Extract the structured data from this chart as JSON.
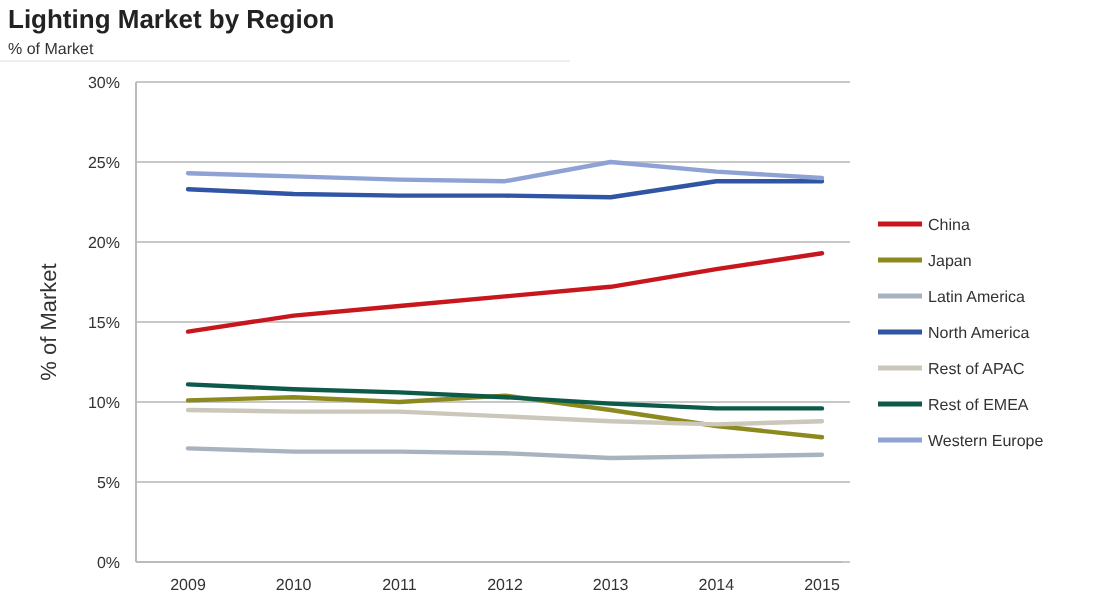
{
  "chart_data": {
    "type": "line",
    "title": "Lighting Market by Region",
    "subtitle": "% of Market",
    "ylabel": "% of Market",
    "categories": [
      "2009",
      "2010",
      "2011",
      "2012",
      "2013",
      "2014",
      "2015"
    ],
    "series": [
      {
        "name": "China",
        "color": "#c8161d",
        "values": [
          14.4,
          15.4,
          16.0,
          16.6,
          17.2,
          18.3,
          19.3
        ]
      },
      {
        "name": "Japan",
        "color": "#8c8a1e",
        "values": [
          10.1,
          10.3,
          10.0,
          10.4,
          9.5,
          8.5,
          7.8
        ]
      },
      {
        "name": "Latin America",
        "color": "#a9b3c0",
        "values": [
          7.1,
          6.9,
          6.9,
          6.8,
          6.5,
          6.6,
          6.7
        ]
      },
      {
        "name": "North America",
        "color": "#2f55a4",
        "values": [
          23.3,
          23.0,
          22.9,
          22.9,
          22.8,
          23.8,
          23.8
        ]
      },
      {
        "name": "Rest of APAC",
        "color": "#cbc7bb",
        "values": [
          9.5,
          9.4,
          9.4,
          9.1,
          8.8,
          8.6,
          8.8
        ]
      },
      {
        "name": "Rest of EMEA",
        "color": "#0e5a4a",
        "values": [
          11.1,
          10.8,
          10.6,
          10.3,
          9.9,
          9.6,
          9.6
        ]
      },
      {
        "name": "Western Europe",
        "color": "#8fa2d4",
        "values": [
          24.3,
          24.1,
          23.9,
          23.8,
          25.0,
          24.4,
          24.0
        ]
      }
    ],
    "ylim": [
      0,
      30
    ],
    "yticks": [
      {
        "value": 0,
        "label": "0%"
      },
      {
        "value": 5,
        "label": "5%"
      },
      {
        "value": 10,
        "label": "10%"
      },
      {
        "value": 15,
        "label": "15%"
      },
      {
        "value": 20,
        "label": "20%"
      },
      {
        "value": 25,
        "label": "25%"
      },
      {
        "value": 30,
        "label": "30%"
      }
    ],
    "grid": "y",
    "legend": "right",
    "marker": "none",
    "line_style": "solid"
  }
}
